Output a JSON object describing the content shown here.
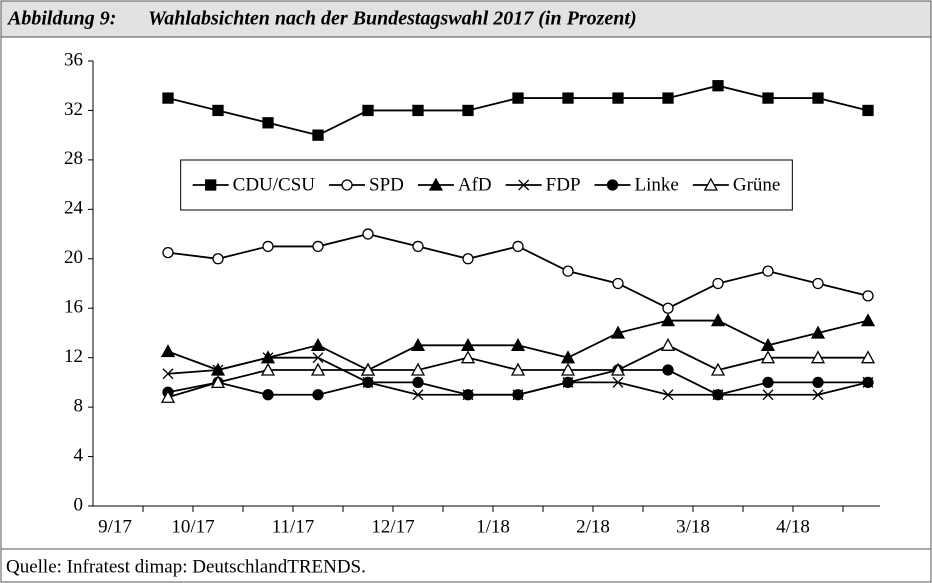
{
  "header": {
    "label": "Abbildung 9:",
    "title": "Wahlabsichten nach der Bundestagswahl 2017 (in Prozent)"
  },
  "chart_data": {
    "type": "line",
    "categories": [
      "9/17",
      null,
      "10/17",
      null,
      "11/17",
      null,
      "12/17",
      null,
      "1/18",
      null,
      "2/18",
      null,
      "3/18",
      null,
      "4/18",
      null
    ],
    "series": [
      {
        "name": "CDU/CSU",
        "color": "#000000",
        "marker": "square",
        "values": [
          null,
          33,
          32,
          31,
          30,
          32,
          32,
          32,
          33,
          33,
          33,
          33,
          34,
          33,
          33,
          32
        ]
      },
      {
        "name": "SPD",
        "color": "#000000",
        "marker": "circle-open",
        "values": [
          null,
          20.5,
          20,
          21,
          21,
          22,
          21,
          20,
          21,
          19,
          18,
          16,
          18,
          19,
          18,
          17
        ]
      },
      {
        "name": "AfD",
        "color": "#000000",
        "marker": "triangle",
        "values": [
          null,
          12.5,
          11,
          12,
          13,
          11,
          13,
          13,
          13,
          12,
          14,
          15,
          15,
          13,
          14,
          15
        ]
      },
      {
        "name": "FDP",
        "color": "#000000",
        "marker": "x",
        "values": [
          null,
          10.7,
          11,
          12,
          12,
          10,
          9,
          9,
          9,
          10,
          10,
          9,
          9,
          9,
          9,
          10
        ]
      },
      {
        "name": "Linke",
        "color": "#000000",
        "marker": "circle",
        "values": [
          null,
          9.2,
          10,
          9,
          9,
          10,
          10,
          9,
          9,
          10,
          11,
          11,
          9,
          10,
          10,
          10
        ]
      },
      {
        "name": "Grüne",
        "color": "#000000",
        "marker": "triangle-open",
        "values": [
          null,
          8.8,
          10,
          11,
          11,
          11,
          11,
          12,
          11,
          11,
          11,
          13,
          11,
          12,
          12,
          12
        ]
      }
    ],
    "ylim": [
      0,
      36
    ],
    "yticks": [
      0,
      4,
      8,
      12,
      16,
      20,
      24,
      28,
      32,
      36
    ],
    "grid": false,
    "legend": "upper center"
  },
  "footer": {
    "source": "Quelle: Infratest dimap: DeutschlandTRENDS."
  }
}
